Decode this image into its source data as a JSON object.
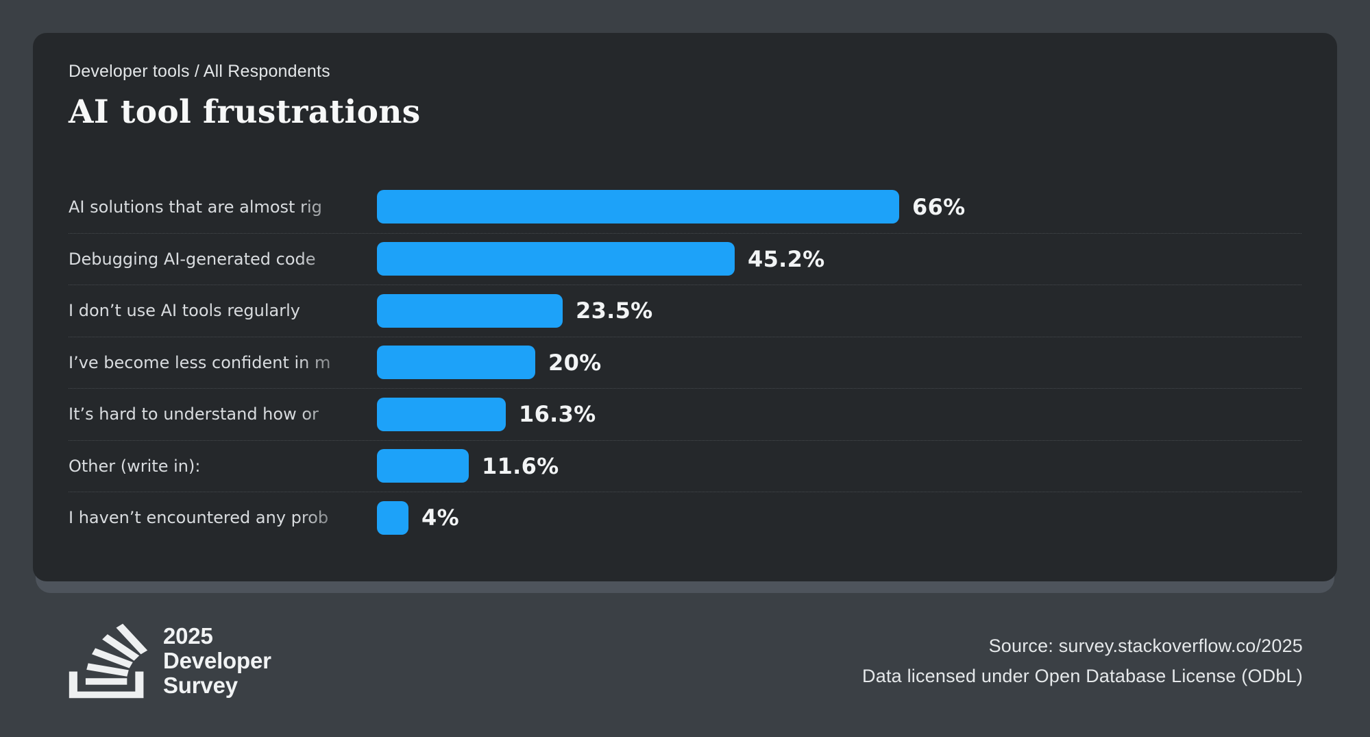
{
  "colors": {
    "page_bg": "#3b4045",
    "card_bg": "#25282b",
    "card_shadow": "#4e545c",
    "bar": "#1da2f9",
    "title_text": "#f7f8f8",
    "label_text": "#d9dcdf",
    "value_text": "#f2f4f5",
    "separator": "#474b4f",
    "footer_text": "#e5e8ea",
    "logo": "#eef0f1"
  },
  "header": {
    "breadcrumb": "Developer tools / All Respondents",
    "title": "AI tool frustrations"
  },
  "chart_data": {
    "type": "bar",
    "orientation": "horizontal",
    "title": "AI tool frustrations",
    "subtitle": "Developer tools / All Respondents",
    "categories": [
      "AI solutions that are almost rig",
      "Debugging AI-generated code",
      "I don’t use AI tools regularly",
      "I’ve become less confident in m",
      "It’s hard to understand how or",
      "Other (write in):",
      "I haven’t encountered any prob"
    ],
    "categories_truncated": [
      true,
      true,
      false,
      true,
      true,
      false,
      true
    ],
    "values": [
      66,
      45.2,
      23.5,
      20,
      16.3,
      11.6,
      4
    ],
    "value_labels": [
      "66%",
      "45.2%",
      "23.5%",
      "20%",
      "16.3%",
      "11.6%",
      "4%"
    ],
    "bar_color": "#1da2f9",
    "xlim": [
      0,
      100
    ],
    "grid": false,
    "legend": false
  },
  "footer": {
    "logo": {
      "icon": "stackoverflow-icon",
      "line1": "2025",
      "line2": "Developer",
      "line3": "Survey"
    },
    "source_line1": "Source: survey.stackoverflow.co/2025",
    "source_line2": "Data licensed under Open Database License (ODbL)"
  }
}
